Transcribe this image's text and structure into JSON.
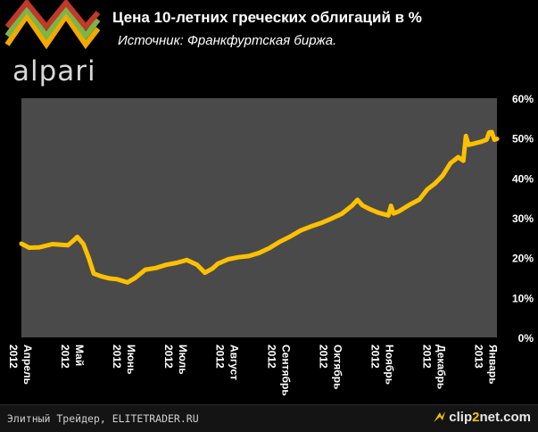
{
  "header": {
    "logo_text": "alpari",
    "title": "Цена 10-летних греческих облигаций в %",
    "subtitle": "Источник: Франкфуртская биржа."
  },
  "footer": {
    "source_text": "Элитный Трейдер, ELITETRADER.RU",
    "watermark_prefix": "clip",
    "watermark_two": "2",
    "watermark_suffix": "net.com"
  },
  "colors": {
    "background": "#000000",
    "plot_area": "#4a4a4a",
    "line": "#ffc000",
    "logo_chevrons": [
      "#f2a900",
      "#7ab648",
      "#c0392b",
      "#e67e22",
      "#f5d547"
    ]
  },
  "chart_data": {
    "type": "line",
    "title": "Цена 10-летних греческих облигаций в %",
    "subtitle": "Источник: Франкфуртская биржа.",
    "x_tick_labels": [
      {
        "month": "Апрель",
        "year": "2012"
      },
      {
        "month": "Май",
        "year": "2012"
      },
      {
        "month": "Июнь",
        "year": "2012"
      },
      {
        "month": "Июль",
        "year": "2012"
      },
      {
        "month": "Август",
        "year": "2012"
      },
      {
        "month": "Сентябрь",
        "year": "2012"
      },
      {
        "month": "Октябрь",
        "year": "2012"
      },
      {
        "month": "Ноябрь",
        "year": "2012"
      },
      {
        "month": "Декабрь",
        "year": "2012"
      },
      {
        "month": "Январь",
        "year": "2013"
      }
    ],
    "y_tick_labels": [
      "60%",
      "50%",
      "40%",
      "30%",
      "20%",
      "10%",
      "0%"
    ],
    "ylim": [
      0,
      60
    ],
    "y_axis_side": "right",
    "grid": false,
    "legend": "none",
    "series": [
      {
        "x_months_from_april_2012": [
          0,
          0.15,
          0.35,
          0.6,
          0.9,
          1.0,
          1.08,
          1.2,
          1.3,
          1.4,
          1.55,
          1.7,
          1.85,
          1.95,
          2.05,
          2.2,
          2.4,
          2.6,
          2.8,
          3.0,
          3.2,
          3.4,
          3.55,
          3.7,
          3.8,
          4.0,
          4.2,
          4.4,
          4.6,
          4.8,
          5.0,
          5.2,
          5.4,
          5.6,
          5.8,
          6.0,
          6.2,
          6.4,
          6.5,
          6.6,
          6.75,
          6.9,
          7.1,
          7.15,
          7.2,
          7.3,
          7.5,
          7.7,
          7.85,
          8.0,
          8.15,
          8.3,
          8.45,
          8.55,
          8.6,
          8.65,
          8.75,
          8.9,
          9.0,
          9.05,
          9.1,
          9.15,
          9.2
        ],
        "y_percent": [
          23.5,
          22.5,
          22.6,
          23.4,
          23.1,
          24.2,
          25.2,
          23.4,
          20.0,
          16.0,
          15.3,
          14.8,
          14.6,
          14.2,
          13.8,
          14.9,
          17.0,
          17.4,
          18.2,
          18.7,
          19.4,
          18.2,
          16.2,
          17.3,
          18.5,
          19.6,
          20.1,
          20.4,
          21.2,
          22.4,
          24.0,
          25.3,
          26.8,
          27.8,
          28.7,
          29.8,
          31.0,
          33.1,
          34.5,
          33.1,
          32.1,
          31.3,
          30.6,
          33.0,
          31.1,
          31.6,
          33.2,
          34.6,
          37.1,
          38.6,
          40.6,
          43.7,
          45.2,
          44.3,
          50.5,
          48.3,
          48.6,
          49.1,
          49.6,
          51.4,
          51.5,
          49.6,
          49.8
        ]
      }
    ]
  }
}
